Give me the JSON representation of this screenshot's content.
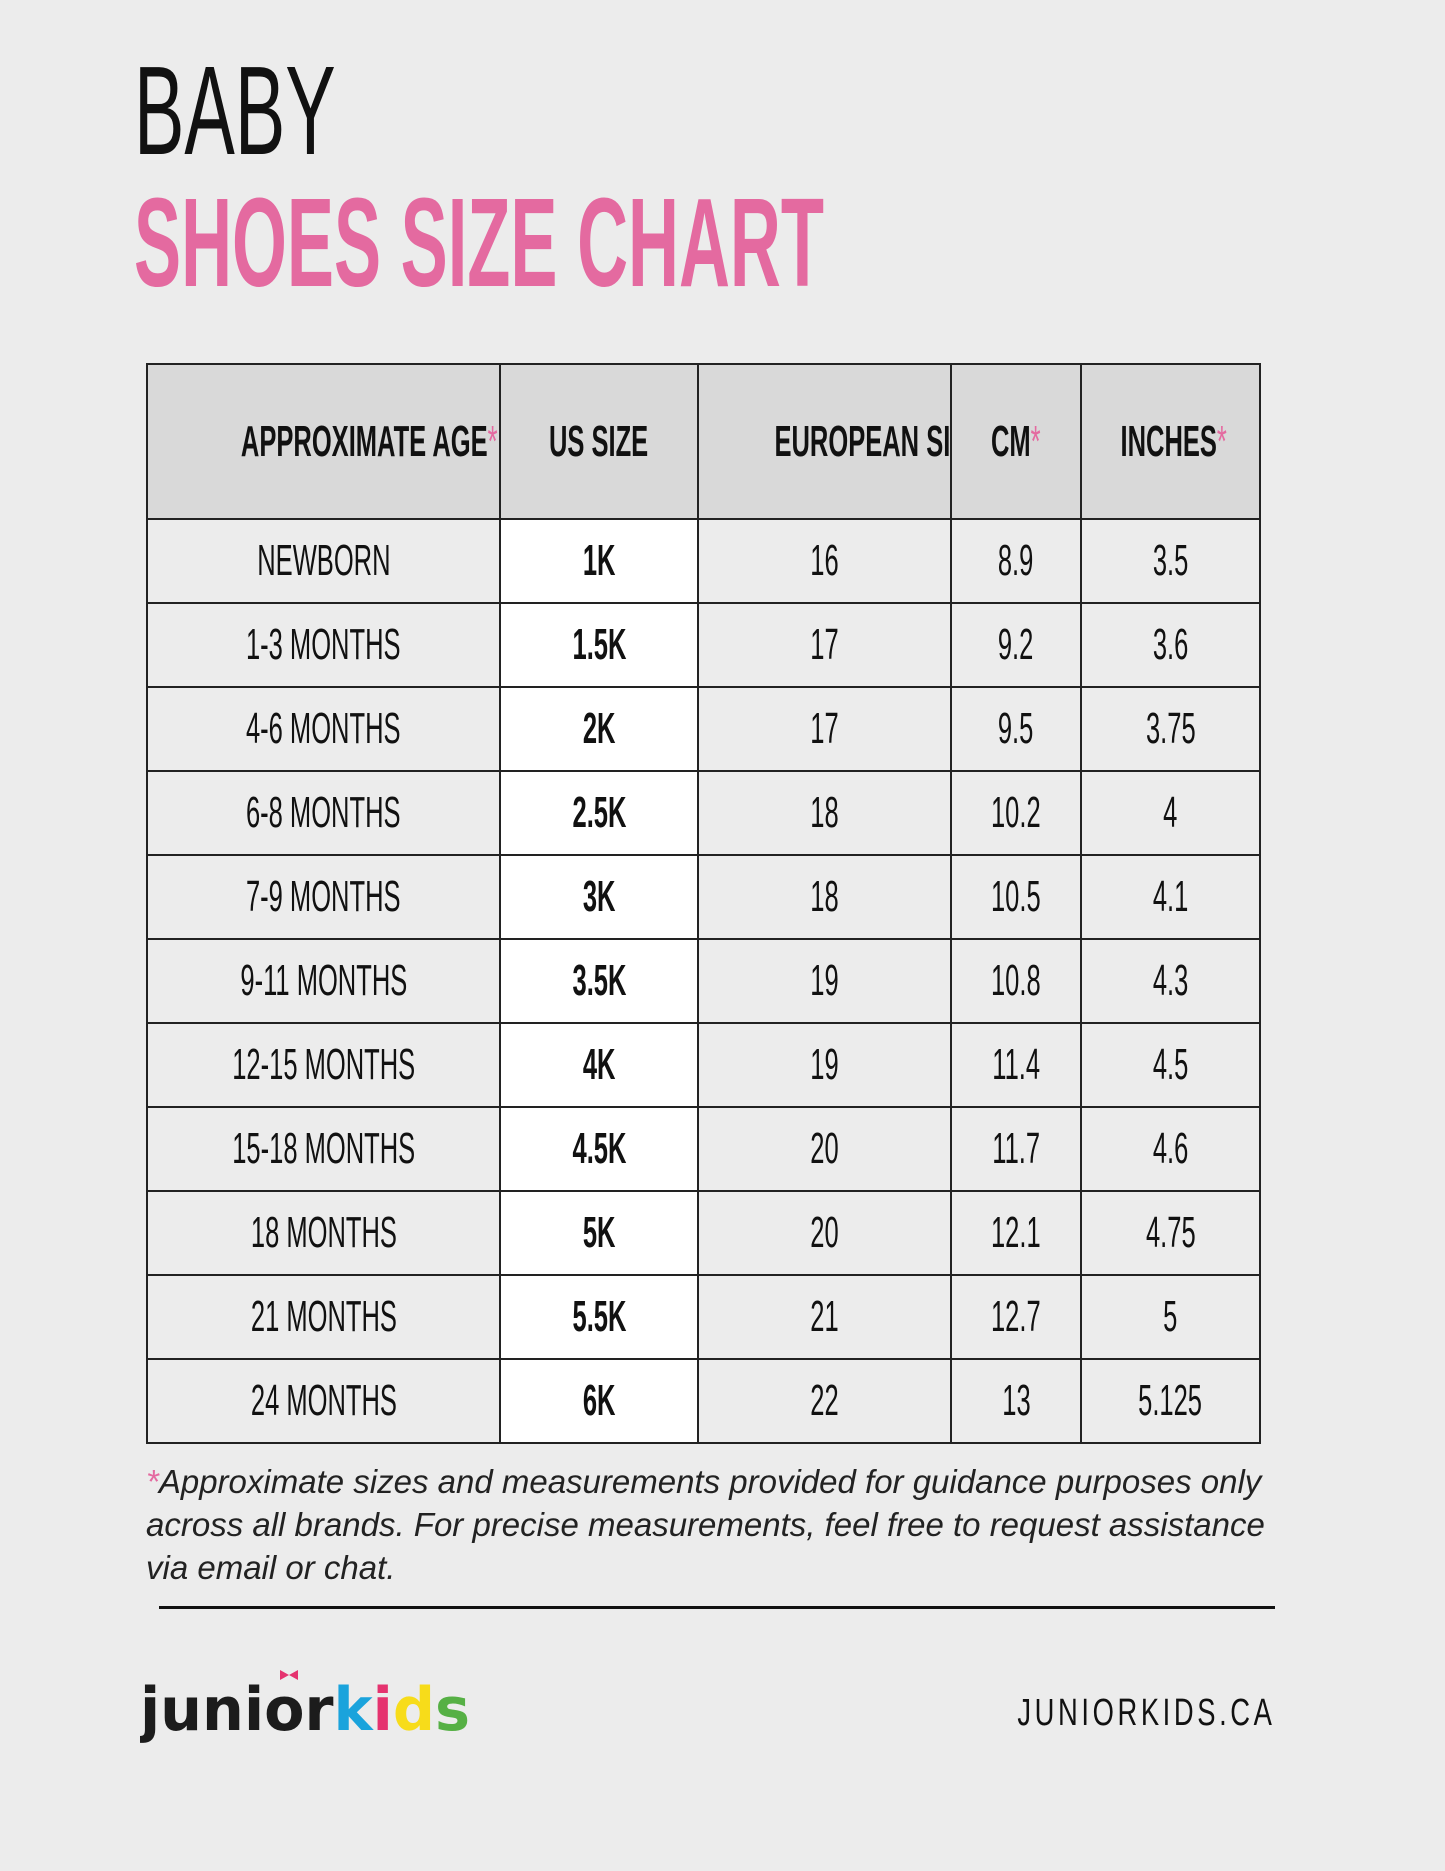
{
  "title": {
    "line1": "BABY",
    "line2": "SHOES SIZE CHART"
  },
  "table": {
    "headers": [
      {
        "label": "APPROXIMATE AGE",
        "asterisk": "*"
      },
      {
        "label": "US SIZE",
        "asterisk": ""
      },
      {
        "label": "EUROPEAN SIZE",
        "asterisk": ""
      },
      {
        "label": "CM",
        "asterisk": "*"
      },
      {
        "label": "INCHES",
        "asterisk": "*"
      }
    ],
    "rows": [
      [
        "NEWBORN",
        "1K",
        "16",
        "8.9",
        "3.5"
      ],
      [
        "1-3 MONTHS",
        "1.5K",
        "17",
        "9.2",
        "3.6"
      ],
      [
        "4-6 MONTHS",
        "2K",
        "17",
        "9.5",
        "3.75"
      ],
      [
        "6-8 MONTHS",
        "2.5K",
        "18",
        "10.2",
        "4"
      ],
      [
        "7-9 MONTHS",
        "3K",
        "18",
        "10.5",
        "4.1"
      ],
      [
        "9-11 MONTHS",
        "3.5K",
        "19",
        "10.8",
        "4.3"
      ],
      [
        "12-15 MONTHS",
        "4K",
        "19",
        "11.4",
        "4.5"
      ],
      [
        "15-18 MONTHS",
        "4.5K",
        "20",
        "11.7",
        "4.6"
      ],
      [
        "18 MONTHS",
        "5K",
        "20",
        "12.1",
        "4.75"
      ],
      [
        "21 MONTHS",
        "5.5K",
        "21",
        "12.7",
        "5"
      ],
      [
        "24 MONTHS",
        "6K",
        "22",
        "13",
        "5.125"
      ]
    ]
  },
  "footnote": {
    "asterisk": "*",
    "text": "Approximate sizes and measurements provided for guidance purposes only across all brands. For precise measurements, feel free to request assistance via email or chat."
  },
  "footer": {
    "logo_text": "juniorkids",
    "website": "JUNIORKIDS.CA"
  },
  "colors": {
    "accent": "#e46aa0",
    "header_bg": "#d9d9d9",
    "page_bg": "#ececec",
    "logo_k": "#1aa3dc",
    "logo_i": "#e5336f",
    "logo_d": "#f7dc1a",
    "logo_s": "#56b045"
  }
}
